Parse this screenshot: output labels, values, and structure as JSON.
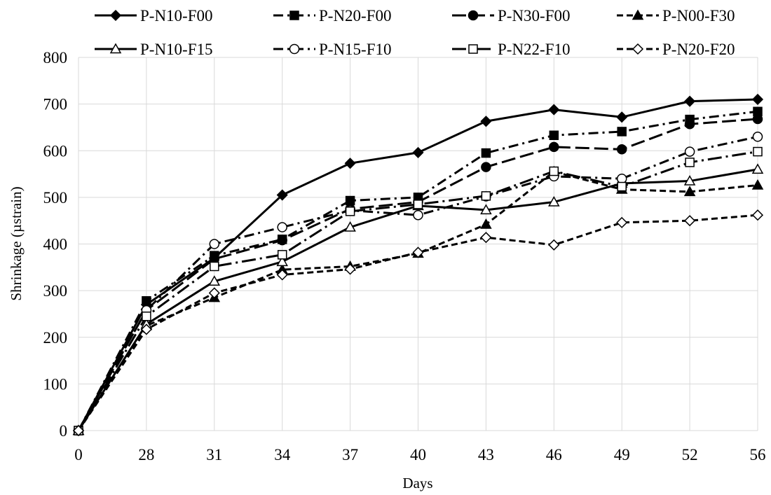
{
  "chart_data": {
    "type": "line",
    "title": "",
    "xlabel": "Days",
    "ylabel": "Shrinkage (µstrain)",
    "categories": [
      "0",
      "28",
      "31",
      "34",
      "37",
      "40",
      "43",
      "46",
      "49",
      "52",
      "56"
    ],
    "ylim": [
      0,
      800
    ],
    "yticks": [
      0,
      100,
      200,
      300,
      400,
      500,
      600,
      700,
      800
    ],
    "grid": true,
    "legend_position": "top",
    "series": [
      {
        "name": "P-N10-F00",
        "values": [
          0,
          270,
          370,
          505,
          573,
          596,
          663,
          688,
          672,
          706,
          710
        ],
        "color": "#000000",
        "dash": "solid",
        "marker": "diamond",
        "fill": "filled"
      },
      {
        "name": "P-N20-F00",
        "values": [
          0,
          278,
          375,
          410,
          493,
          500,
          595,
          633,
          641,
          667,
          684
        ],
        "color": "#000000",
        "dash": "dashdot",
        "marker": "square",
        "fill": "filled"
      },
      {
        "name": "P-N30-F00",
        "values": [
          0,
          258,
          368,
          408,
          475,
          490,
          565,
          608,
          603,
          657,
          668
        ],
        "color": "#000000",
        "dash": "longdash",
        "marker": "circle",
        "fill": "filled"
      },
      {
        "name": "P-N00-F30",
        "values": [
          0,
          225,
          285,
          345,
          352,
          380,
          442,
          555,
          517,
          512,
          526
        ],
        "color": "#000000",
        "dash": "dashed",
        "marker": "triangle",
        "fill": "filled"
      },
      {
        "name": "P-N10-F15",
        "values": [
          0,
          228,
          320,
          362,
          436,
          482,
          473,
          490,
          530,
          535,
          560
        ],
        "color": "#000000",
        "dash": "solid",
        "marker": "triangle",
        "fill": "open"
      },
      {
        "name": "P-N15-F10",
        "values": [
          0,
          258,
          400,
          436,
          472,
          462,
          502,
          545,
          540,
          598,
          630
        ],
        "color": "#000000",
        "dash": "dashdot",
        "marker": "circle",
        "fill": "open"
      },
      {
        "name": "P-N22-F10",
        "values": [
          0,
          245,
          352,
          377,
          470,
          485,
          503,
          556,
          523,
          575,
          598
        ],
        "color": "#000000",
        "dash": "longdashdot",
        "marker": "square",
        "fill": "open"
      },
      {
        "name": "P-N20-F20",
        "values": [
          0,
          217,
          295,
          334,
          346,
          382,
          414,
          398,
          446,
          450,
          462
        ],
        "color": "#000000",
        "dash": "dashed",
        "marker": "diamond",
        "fill": "open"
      }
    ]
  }
}
